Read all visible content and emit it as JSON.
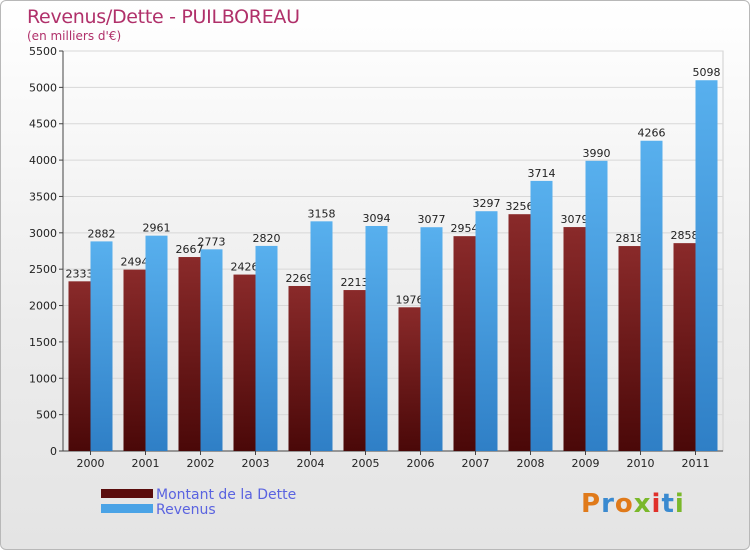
{
  "title": "Revenus/Dette - PUILBOREAU",
  "subtitle": "(en milliers d'€)",
  "logo": {
    "text": "Proxiti",
    "colors": [
      "#e07a1a",
      "#3a8ad0",
      "#e07a1a",
      "#7ab82a",
      "#e0302a",
      "#3a8ad0",
      "#7ab82a"
    ]
  },
  "chart_data": {
    "type": "bar",
    "categories": [
      "2000",
      "2001",
      "2002",
      "2003",
      "2004",
      "2005",
      "2006",
      "2007",
      "2008",
      "2009",
      "2010",
      "2011"
    ],
    "series": [
      {
        "name": "Montant de la Dette",
        "color": "#6b1a1a",
        "values": [
          2333,
          2494,
          2667,
          2426,
          2269,
          2213,
          1976,
          2954,
          3256,
          3079,
          2818,
          2858
        ]
      },
      {
        "name": "Revenus",
        "color": "#4aa3e6",
        "values": [
          2882,
          2961,
          2773,
          2820,
          3158,
          3094,
          3077,
          3297,
          3714,
          3990,
          4266,
          5098
        ]
      }
    ],
    "ylim": [
      0,
      5500
    ],
    "yticks": [
      0,
      500,
      1000,
      1500,
      2000,
      2500,
      3000,
      3500,
      4000,
      4500,
      5000,
      5500
    ],
    "grid": true,
    "legend": "bottom-left"
  }
}
